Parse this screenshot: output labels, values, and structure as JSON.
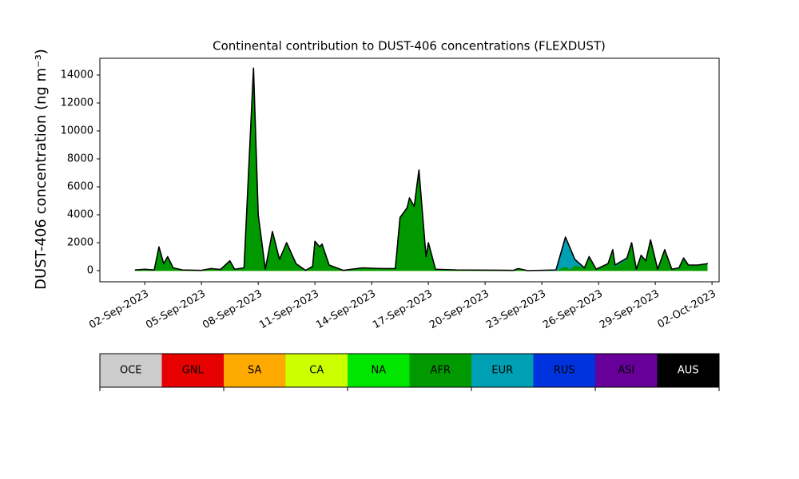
{
  "chart_data": {
    "type": "stackplot",
    "title": "Continental contribution to DUST-406 concentrations (FLEXDUST)",
    "ylabel": "DUST-406 concentration (ng m⁻³)",
    "x": [
      "2023-09-01T12:00",
      "2023-09-02T00:00",
      "2023-09-02T12:00",
      "2023-09-02T18:00",
      "2023-09-03T00:00",
      "2023-09-03T05:00",
      "2023-09-03T12:00",
      "2023-09-04T00:00",
      "2023-09-05T00:00",
      "2023-09-05T12:00",
      "2023-09-06T00:00",
      "2023-09-06T12:00",
      "2023-09-06T18:00",
      "2023-09-07T06:00",
      "2023-09-07T18:00",
      "2023-09-08T00:00",
      "2023-09-08T09:00",
      "2023-09-08T18:00",
      "2023-09-09T03:00",
      "2023-09-09T12:00",
      "2023-09-10T00:00",
      "2023-09-10T12:00",
      "2023-09-10T21:00",
      "2023-09-11T00:00",
      "2023-09-11T06:00",
      "2023-09-11T09:00",
      "2023-09-11T18:00",
      "2023-09-12T12:00",
      "2023-09-13T12:00",
      "2023-09-14T12:00",
      "2023-09-15T06:00",
      "2023-09-15T12:00",
      "2023-09-15T21:00",
      "2023-09-16T00:00",
      "2023-09-16T06:00",
      "2023-09-16T12:00",
      "2023-09-16T21:00",
      "2023-09-17T00:00",
      "2023-09-17T09:00",
      "2023-09-18T12:00",
      "2023-09-21T12:00",
      "2023-09-21T18:00",
      "2023-09-22T06:00",
      "2023-09-23T18:00",
      "2023-09-24T06:00",
      "2023-09-24T12:00",
      "2023-09-24T18:00",
      "2023-09-25T06:00",
      "2023-09-25T12:00",
      "2023-09-25T21:00",
      "2023-09-26T12:00",
      "2023-09-26T18:00",
      "2023-09-26T21:00",
      "2023-09-27T12:00",
      "2023-09-27T18:00",
      "2023-09-28T00:00",
      "2023-09-28T06:00",
      "2023-09-28T12:00",
      "2023-09-28T18:00",
      "2023-09-29T03:00",
      "2023-09-29T12:00",
      "2023-09-29T21:00",
      "2023-09-30T06:00",
      "2023-09-30T12:00",
      "2023-09-30T18:00",
      "2023-10-01T06:00",
      "2023-10-01T18:00"
    ],
    "series": [
      {
        "name": "OCE",
        "color": "#cccccc",
        "values": [
          0,
          0,
          0,
          0,
          0,
          0,
          0,
          0,
          0,
          0,
          0,
          0,
          0,
          0,
          0,
          0,
          0,
          0,
          0,
          0,
          0,
          0,
          0,
          0,
          0,
          0,
          0,
          0,
          0,
          0,
          0,
          0,
          0,
          0,
          0,
          0,
          0,
          0,
          0,
          0,
          0,
          0,
          0,
          0,
          0,
          0,
          0,
          0,
          0,
          0,
          0,
          0,
          0,
          0,
          0,
          0,
          0,
          0,
          0,
          0,
          0,
          0,
          0,
          0,
          0,
          0,
          0
        ]
      },
      {
        "name": "GNL",
        "color": "#e60000",
        "values": [
          0,
          0,
          0,
          0,
          0,
          0,
          0,
          0,
          0,
          0,
          0,
          0,
          0,
          0,
          0,
          0,
          0,
          0,
          0,
          0,
          0,
          0,
          0,
          0,
          0,
          0,
          0,
          0,
          0,
          0,
          0,
          0,
          0,
          0,
          0,
          0,
          0,
          0,
          0,
          0,
          0,
          0,
          0,
          0,
          0,
          0,
          0,
          0,
          0,
          0,
          0,
          0,
          0,
          0,
          0,
          0,
          0,
          0,
          0,
          0,
          0,
          0,
          0,
          0,
          0,
          0,
          0
        ]
      },
      {
        "name": "SA",
        "color": "#ffaa00",
        "values": [
          0,
          0,
          0,
          0,
          0,
          0,
          0,
          0,
          0,
          0,
          0,
          0,
          0,
          0,
          0,
          0,
          0,
          0,
          0,
          0,
          0,
          0,
          0,
          0,
          0,
          0,
          0,
          0,
          0,
          0,
          0,
          0,
          0,
          0,
          0,
          0,
          0,
          0,
          0,
          0,
          0,
          0,
          0,
          0,
          0,
          0,
          0,
          0,
          0,
          0,
          0,
          0,
          0,
          0,
          0,
          0,
          0,
          0,
          0,
          0,
          0,
          0,
          0,
          0,
          0,
          0,
          0
        ]
      },
      {
        "name": "CA",
        "color": "#ccff00",
        "values": [
          0,
          0,
          0,
          0,
          0,
          0,
          0,
          0,
          0,
          0,
          0,
          0,
          0,
          0,
          0,
          0,
          0,
          0,
          0,
          0,
          0,
          0,
          0,
          0,
          0,
          0,
          0,
          0,
          0,
          0,
          0,
          0,
          0,
          0,
          0,
          0,
          0,
          0,
          0,
          0,
          0,
          0,
          0,
          0,
          0,
          0,
          0,
          0,
          0,
          0,
          0,
          0,
          0,
          0,
          0,
          0,
          0,
          0,
          0,
          0,
          0,
          0,
          0,
          0,
          0,
          0,
          0
        ]
      },
      {
        "name": "NA",
        "color": "#00e600",
        "values": [
          0,
          0,
          0,
          0,
          0,
          0,
          0,
          0,
          0,
          0,
          0,
          0,
          0,
          0,
          0,
          0,
          0,
          0,
          0,
          0,
          0,
          0,
          0,
          0,
          0,
          0,
          0,
          0,
          0,
          0,
          0,
          0,
          0,
          0,
          0,
          0,
          0,
          0,
          0,
          0,
          0,
          0,
          0,
          0,
          0,
          0,
          0,
          0,
          0,
          0,
          0,
          0,
          0,
          0,
          0,
          0,
          0,
          0,
          0,
          0,
          0,
          0,
          0,
          0,
          0,
          0,
          0
        ]
      },
      {
        "name": "AFR",
        "color": "#009900",
        "values": [
          50,
          100,
          50,
          1700,
          500,
          1000,
          200,
          50,
          20,
          150,
          80,
          700,
          100,
          200,
          14500,
          4000,
          100,
          2800,
          800,
          2000,
          500,
          20,
          300,
          2100,
          1700,
          1900,
          400,
          20,
          200,
          150,
          150,
          3800,
          4500,
          5200,
          4600,
          7200,
          1000,
          2000,
          100,
          50,
          20,
          150,
          0,
          0,
          300,
          100,
          400,
          200,
          1000,
          100,
          500,
          1500,
          300,
          800,
          2000,
          100,
          1100,
          700,
          2200,
          100,
          1500,
          100,
          200,
          900,
          400,
          400,
          500
        ]
      },
      {
        "name": "EUR",
        "color": "#00a0b4",
        "values": [
          0,
          0,
          0,
          0,
          0,
          0,
          0,
          0,
          0,
          0,
          0,
          0,
          0,
          0,
          0,
          0,
          0,
          0,
          0,
          0,
          0,
          0,
          0,
          0,
          0,
          0,
          0,
          0,
          0,
          0,
          0,
          0,
          0,
          0,
          0,
          0,
          0,
          0,
          0,
          0,
          0,
          0,
          0,
          50,
          2100,
          1500,
          400,
          0,
          0,
          0,
          0,
          0,
          100,
          100,
          0,
          0,
          0,
          0,
          0,
          0,
          0,
          0,
          0,
          0,
          0,
          0,
          0
        ]
      },
      {
        "name": "RUS",
        "color": "#0033dd",
        "values": [
          0,
          0,
          0,
          0,
          0,
          0,
          0,
          0,
          0,
          0,
          0,
          0,
          0,
          0,
          0,
          0,
          0,
          0,
          0,
          0,
          0,
          0,
          0,
          0,
          0,
          0,
          0,
          0,
          0,
          0,
          0,
          0,
          0,
          0,
          0,
          0,
          0,
          0,
          0,
          0,
          0,
          0,
          0,
          0,
          0,
          0,
          0,
          0,
          0,
          0,
          0,
          0,
          0,
          0,
          0,
          0,
          0,
          0,
          0,
          0,
          0,
          0,
          0,
          0,
          0,
          0,
          0
        ]
      },
      {
        "name": "ASI",
        "color": "#660099",
        "values": [
          0,
          0,
          0,
          0,
          0,
          0,
          0,
          0,
          0,
          0,
          0,
          0,
          0,
          0,
          0,
          0,
          0,
          0,
          0,
          0,
          0,
          0,
          0,
          0,
          0,
          0,
          0,
          0,
          0,
          0,
          0,
          0,
          0,
          0,
          0,
          0,
          0,
          0,
          0,
          0,
          0,
          0,
          0,
          0,
          0,
          0,
          0,
          0,
          0,
          0,
          0,
          0,
          0,
          0,
          0,
          0,
          0,
          0,
          0,
          0,
          0,
          0,
          0,
          0,
          0,
          0,
          0
        ]
      },
      {
        "name": "AUS",
        "color": "#000000",
        "values": [
          0,
          0,
          0,
          0,
          0,
          0,
          0,
          0,
          0,
          0,
          0,
          0,
          0,
          0,
          0,
          0,
          0,
          0,
          0,
          0,
          0,
          0,
          0,
          0,
          0,
          0,
          0,
          0,
          0,
          0,
          0,
          0,
          0,
          0,
          0,
          0,
          0,
          0,
          0,
          0,
          0,
          0,
          0,
          0,
          0,
          0,
          0,
          0,
          0,
          0,
          0,
          0,
          0,
          0,
          0,
          0,
          0,
          0,
          0,
          0,
          0,
          0,
          0,
          0,
          0,
          0,
          0
        ]
      }
    ],
    "xlim": [
      "2023-08-30T15:00",
      "2023-10-02T09:00"
    ],
    "xticks": [
      {
        "value": "2023-09-02T00:00",
        "label": "02-Sep-2023"
      },
      {
        "value": "2023-09-05T00:00",
        "label": "05-Sep-2023"
      },
      {
        "value": "2023-09-08T00:00",
        "label": "08-Sep-2023"
      },
      {
        "value": "2023-09-11T00:00",
        "label": "11-Sep-2023"
      },
      {
        "value": "2023-09-14T00:00",
        "label": "14-Sep-2023"
      },
      {
        "value": "2023-09-17T00:00",
        "label": "17-Sep-2023"
      },
      {
        "value": "2023-09-20T00:00",
        "label": "20-Sep-2023"
      },
      {
        "value": "2023-09-23T00:00",
        "label": "23-Sep-2023"
      },
      {
        "value": "2023-09-26T00:00",
        "label": "26-Sep-2023"
      },
      {
        "value": "2023-09-29T00:00",
        "label": "29-Sep-2023"
      },
      {
        "value": "2023-10-02T00:00",
        "label": "02-Oct-2023"
      }
    ],
    "ylim": [
      -800,
      15200
    ],
    "yticks": [
      0,
      2000,
      4000,
      6000,
      8000,
      10000,
      12000,
      14000
    ],
    "legend": "colorbar-below"
  }
}
